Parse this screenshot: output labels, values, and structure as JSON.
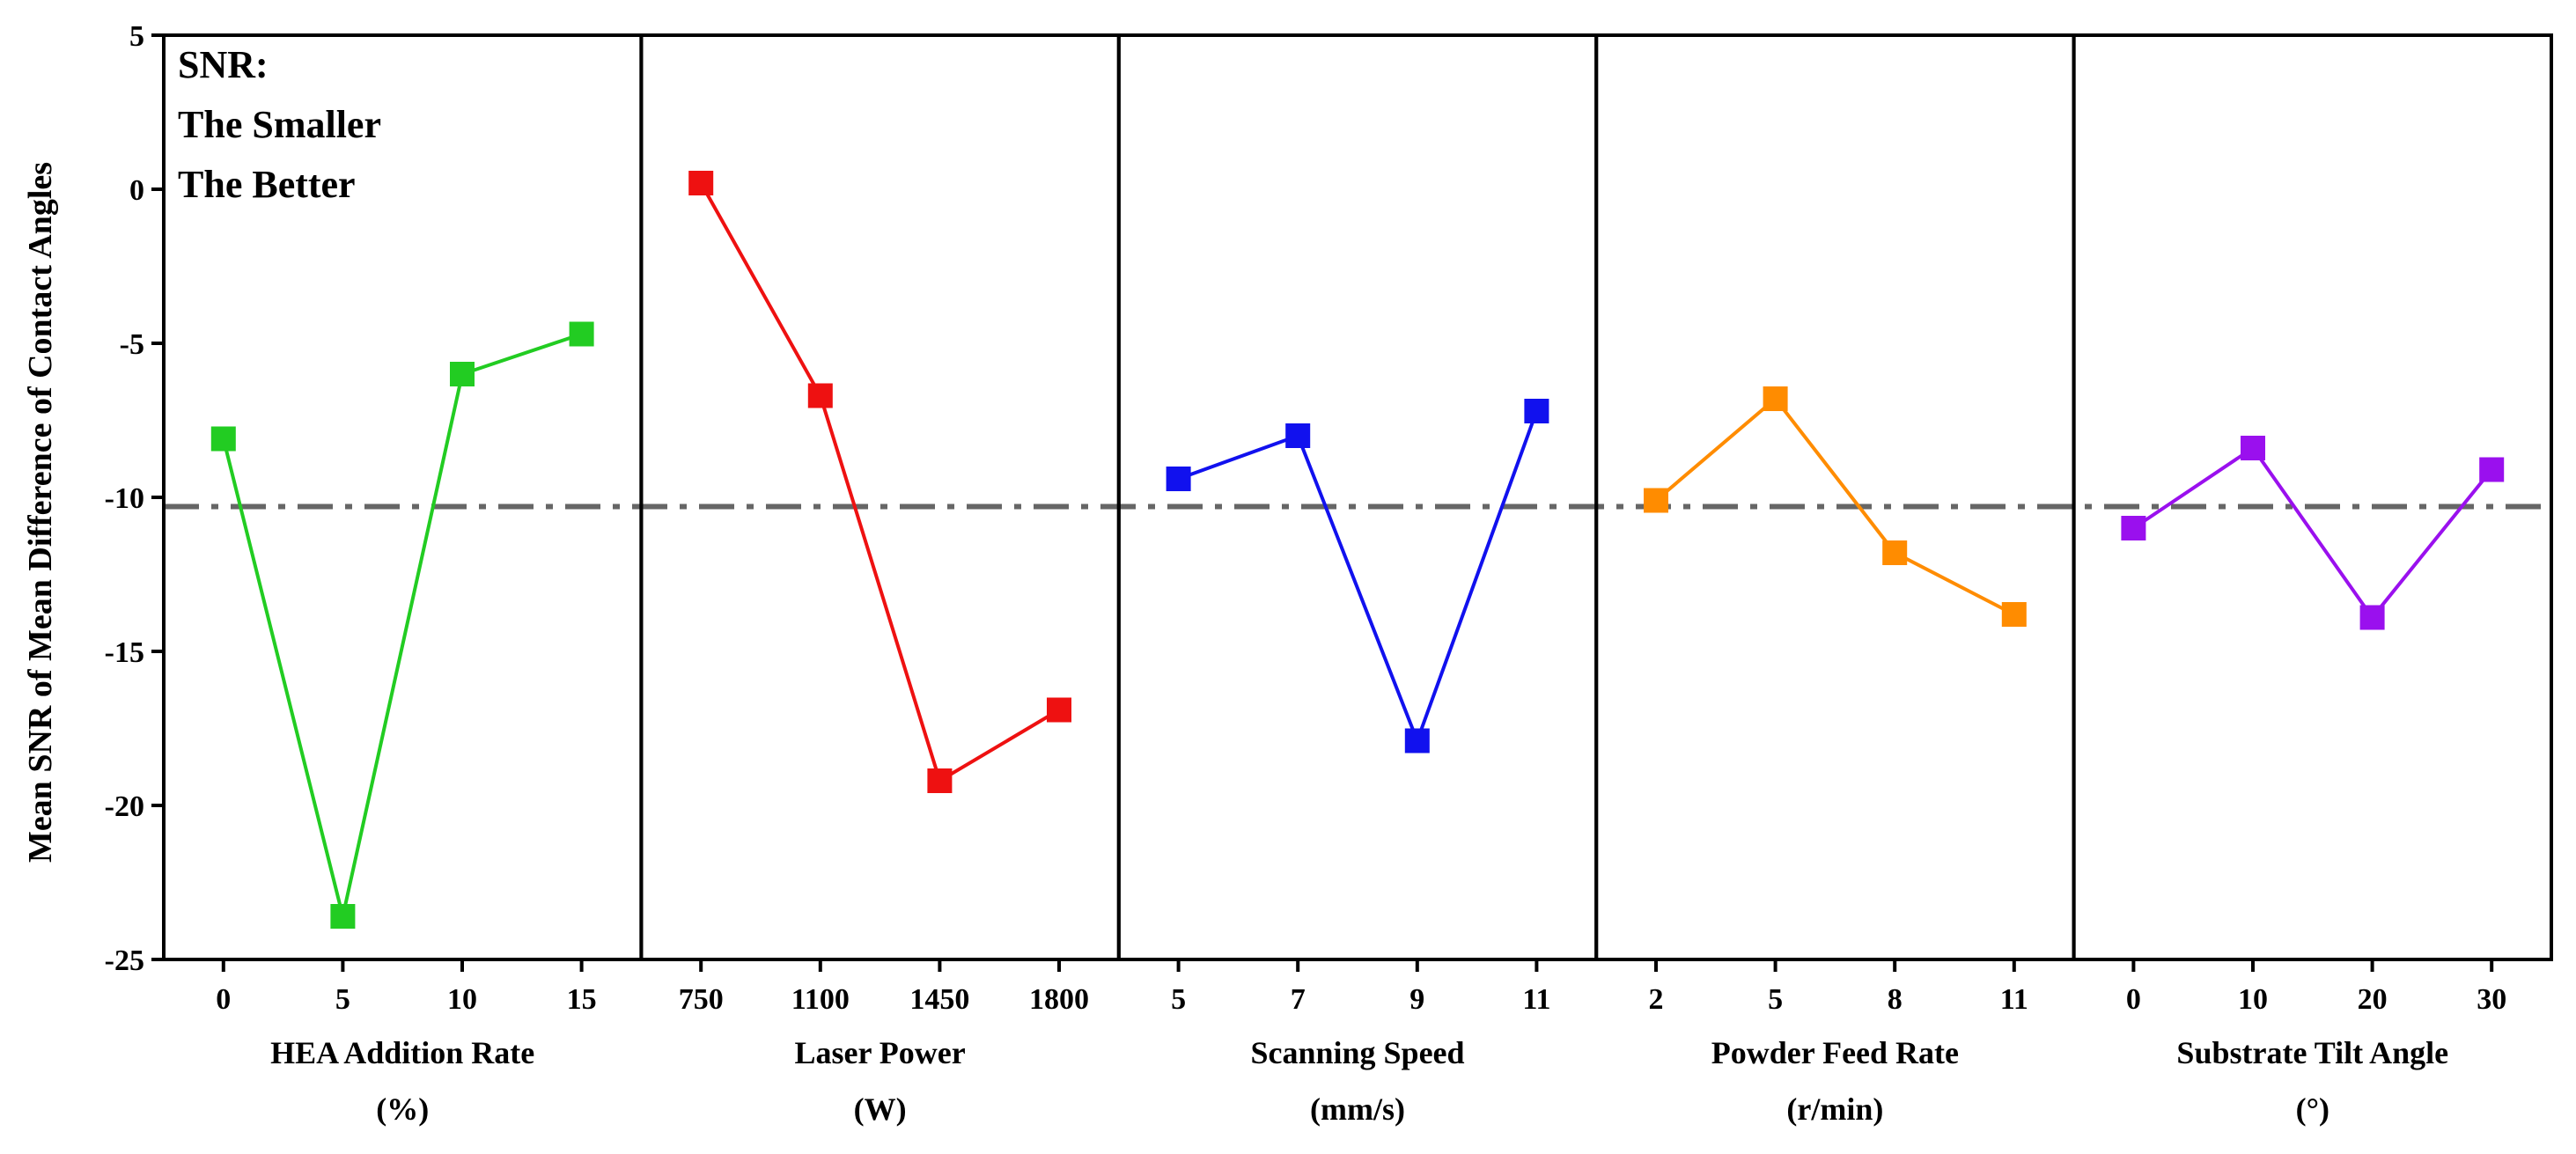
{
  "chart_data": {
    "type": "line",
    "ylabel": "Mean SNR of Mean Difference of Contact Angles",
    "ylim": [
      -25,
      5
    ],
    "yticks": [
      5,
      0,
      -5,
      -10,
      -15,
      -20,
      -25
    ],
    "reference_line": -10.3,
    "annotation": [
      "SNR:",
      "The Smaller",
      "The Better"
    ],
    "panels": [
      {
        "name": "HEA Addition Rate",
        "xlabel": [
          "HEA Addition Rate",
          "(%)"
        ],
        "categories": [
          "0",
          "5",
          "10",
          "15"
        ],
        "values": [
          -8.1,
          -23.6,
          -6.0,
          -4.7
        ],
        "color": "#22cc22"
      },
      {
        "name": "Laser Power",
        "xlabel": [
          "Laser Power",
          "(W)"
        ],
        "categories": [
          "750",
          "1100",
          "1450",
          "1800"
        ],
        "values": [
          0.2,
          -6.7,
          -19.2,
          -16.9
        ],
        "color": "#ee1111"
      },
      {
        "name": "Scanning Speed",
        "xlabel": [
          "Scanning Speed",
          "(mm/s)"
        ],
        "categories": [
          "5",
          "7",
          "9",
          "11"
        ],
        "values": [
          -9.4,
          -8.0,
          -17.9,
          -7.2
        ],
        "color": "#1111ee"
      },
      {
        "name": "Powder Feed Rate",
        "xlabel": [
          "Powder Feed Rate",
          "(r/min)"
        ],
        "categories": [
          "2",
          "5",
          "8",
          "11"
        ],
        "values": [
          -10.1,
          -6.8,
          -11.8,
          -13.8
        ],
        "color": "#ff8c00"
      },
      {
        "name": "Substrate Tilt Angle",
        "xlabel": [
          "Substrate Tilt Angle",
          "(°)"
        ],
        "categories": [
          "0",
          "10",
          "20",
          "30"
        ],
        "values": [
          -11.0,
          -8.4,
          -13.9,
          -9.1
        ],
        "color": "#9a10ee"
      }
    ]
  }
}
